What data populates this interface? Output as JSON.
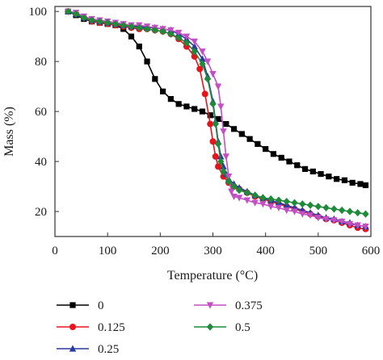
{
  "chart_data": {
    "type": "line",
    "xlabel": "Temperature (°C)",
    "ylabel": "Mass (%)",
    "xlim": [
      0,
      600
    ],
    "ylim": [
      10,
      102
    ],
    "xticks": [
      0,
      100,
      200,
      300,
      400,
      500,
      600
    ],
    "yticks": [
      20,
      40,
      60,
      80,
      100
    ],
    "grid": false,
    "legend_position": "bottom",
    "series": [
      {
        "name": "0",
        "color": "#000000",
        "marker": "square",
        "x": [
          25,
          40,
          55,
          70,
          85,
          100,
          115,
          130,
          145,
          160,
          175,
          190,
          205,
          220,
          235,
          250,
          265,
          280,
          295,
          310,
          325,
          340,
          355,
          370,
          385,
          400,
          415,
          430,
          445,
          460,
          475,
          490,
          505,
          520,
          535,
          550,
          565,
          580,
          590
        ],
        "values": [
          100,
          98.5,
          97,
          96,
          95.5,
          95,
          94.5,
          93,
          90,
          86,
          80,
          73,
          68,
          65,
          63,
          62,
          61,
          60,
          58.5,
          57,
          55,
          53,
          51,
          49,
          47,
          45,
          43,
          41.5,
          40,
          38.5,
          37,
          36,
          35,
          34,
          33,
          32.5,
          31.5,
          31,
          30.5
        ]
      },
      {
        "name": "0.125",
        "color": "#e8141b",
        "marker": "circle",
        "x": [
          25,
          40,
          55,
          70,
          85,
          100,
          115,
          130,
          145,
          160,
          175,
          190,
          205,
          220,
          235,
          250,
          265,
          275,
          285,
          295,
          300,
          305,
          310,
          320,
          330,
          340,
          350,
          365,
          380,
          395,
          410,
          425,
          440,
          455,
          470,
          485,
          500,
          515,
          530,
          545,
          560,
          575,
          590
        ],
        "values": [
          100,
          99,
          97.5,
          96,
          95.5,
          95,
          94.5,
          94,
          93.5,
          93,
          93,
          92.5,
          92,
          91,
          89,
          86,
          82,
          77,
          67,
          55,
          48,
          42,
          38,
          34,
          31.5,
          30,
          29,
          27.5,
          26,
          25,
          24,
          23,
          22,
          21,
          20,
          19,
          18,
          17,
          16.5,
          15.5,
          14.5,
          13.5,
          13
        ]
      },
      {
        "name": "0.25",
        "color": "#2b3a9e",
        "marker": "triangle-up",
        "x": [
          25,
          40,
          55,
          70,
          85,
          100,
          115,
          130,
          145,
          160,
          175,
          190,
          205,
          220,
          235,
          250,
          265,
          280,
          290,
          300,
          305,
          310,
          315,
          320,
          325,
          330,
          340,
          350,
          365,
          380,
          395,
          410,
          425,
          440,
          455,
          470,
          485,
          500,
          515,
          530,
          545,
          560,
          575,
          590
        ],
        "values": [
          100,
          99,
          97.5,
          96.5,
          96,
          95.5,
          95,
          94.5,
          94,
          94,
          93.5,
          93.5,
          93,
          92.5,
          91,
          89,
          86,
          81,
          74,
          64,
          56,
          48,
          42,
          38,
          35,
          33,
          31,
          29.5,
          28,
          26.5,
          25.5,
          24.5,
          23.5,
          22.5,
          21.5,
          20.5,
          19.5,
          18.5,
          17.5,
          17,
          16,
          15.5,
          14.5,
          14
        ]
      },
      {
        "name": "0.375",
        "color": "#c44fc4",
        "marker": "triangle-down",
        "x": [
          25,
          40,
          55,
          70,
          85,
          100,
          115,
          130,
          145,
          160,
          175,
          190,
          205,
          220,
          235,
          250,
          265,
          280,
          290,
          300,
          310,
          315,
          320,
          325,
          330,
          335,
          340,
          350,
          365,
          380,
          395,
          410,
          425,
          440,
          455,
          470,
          485,
          500,
          515,
          530,
          545,
          560,
          575,
          590
        ],
        "values": [
          100,
          99.5,
          98,
          97,
          96.5,
          96,
          95.5,
          95,
          94.5,
          94.5,
          94,
          93.5,
          93,
          92.5,
          91.5,
          90,
          88,
          84,
          80,
          75,
          70,
          62,
          52,
          42,
          34,
          28,
          26,
          25.5,
          24.5,
          23.5,
          23,
          22,
          21.5,
          20.5,
          20,
          19,
          18.5,
          17.5,
          17,
          16.5,
          16,
          15,
          14.5,
          14
        ]
      },
      {
        "name": "0.5",
        "color": "#1f8a3a",
        "marker": "diamond",
        "x": [
          25,
          40,
          55,
          70,
          85,
          100,
          115,
          130,
          145,
          160,
          175,
          190,
          205,
          220,
          235,
          250,
          265,
          280,
          290,
          300,
          305,
          310,
          315,
          320,
          330,
          340,
          350,
          365,
          380,
          395,
          410,
          425,
          440,
          455,
          470,
          485,
          500,
          515,
          530,
          545,
          560,
          575,
          590
        ],
        "values": [
          100,
          99,
          97.5,
          96.5,
          96,
          95.5,
          95,
          94.5,
          94,
          93.5,
          93,
          92.5,
          92,
          91,
          89.5,
          87.5,
          84,
          79,
          73,
          63,
          55,
          47,
          40,
          36,
          32,
          30,
          28.5,
          27.5,
          26.5,
          25.5,
          25,
          24.5,
          24,
          23.5,
          23,
          22.5,
          22,
          21.5,
          21,
          20.5,
          20,
          19.5,
          19
        ]
      }
    ]
  }
}
